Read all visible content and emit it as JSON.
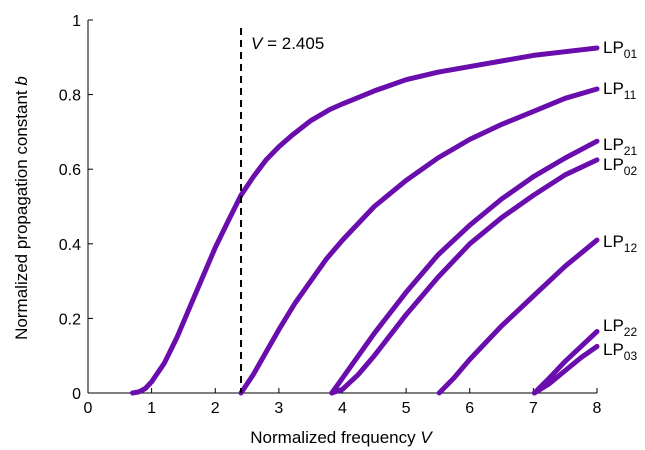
{
  "chart_data": {
    "type": "line",
    "xlabel": "Normalized frequency",
    "xlabel_var": "V",
    "ylabel": "Normalized propagation constant",
    "ylabel_var": "b",
    "xlim": [
      0,
      8
    ],
    "ylim": [
      0,
      1
    ],
    "xticks": [
      0,
      1,
      2,
      3,
      4,
      5,
      6,
      7,
      8
    ],
    "yticks": [
      0,
      0.2,
      0.4,
      0.6,
      0.8,
      1
    ],
    "ytick_labels": [
      "0",
      "0.2",
      "0.4",
      "0.6",
      "0.8",
      "1"
    ],
    "grid": false,
    "line_color": "#6a0dad",
    "annotation": {
      "type": "vertical-dashed-line",
      "x": 2.405,
      "var": "V",
      "text": " = 2.405"
    },
    "series": [
      {
        "name": "LP01",
        "label_main": "LP",
        "label_sub": "01",
        "x": [
          0.7,
          0.8,
          0.9,
          1.0,
          1.2,
          1.4,
          1.6,
          1.8,
          2.0,
          2.2,
          2.405,
          2.6,
          2.8,
          3.0,
          3.2,
          3.5,
          3.8,
          4.0,
          4.5,
          5.0,
          5.5,
          6.0,
          6.5,
          7.0,
          7.5,
          8.0
        ],
        "y": [
          0.0,
          0.003,
          0.012,
          0.03,
          0.08,
          0.15,
          0.23,
          0.31,
          0.39,
          0.46,
          0.53,
          0.58,
          0.625,
          0.66,
          0.69,
          0.73,
          0.76,
          0.775,
          0.81,
          0.84,
          0.86,
          0.875,
          0.89,
          0.905,
          0.915,
          0.925
        ]
      },
      {
        "name": "LP11",
        "label_main": "LP",
        "label_sub": "11",
        "x": [
          2.405,
          2.6,
          2.8,
          3.0,
          3.25,
          3.5,
          3.75,
          4.0,
          4.5,
          5.0,
          5.5,
          6.0,
          6.5,
          7.0,
          7.5,
          8.0
        ],
        "y": [
          0.0,
          0.05,
          0.11,
          0.17,
          0.24,
          0.3,
          0.36,
          0.41,
          0.5,
          0.57,
          0.63,
          0.68,
          0.72,
          0.755,
          0.79,
          0.815
        ]
      },
      {
        "name": "LP21",
        "label_main": "LP",
        "label_sub": "21",
        "x": [
          3.832,
          4.0,
          4.25,
          4.5,
          5.0,
          5.5,
          6.0,
          6.5,
          7.0,
          7.5,
          8.0
        ],
        "y": [
          0.0,
          0.04,
          0.1,
          0.16,
          0.27,
          0.37,
          0.45,
          0.52,
          0.58,
          0.63,
          0.675
        ]
      },
      {
        "name": "LP02",
        "label_main": "LP",
        "label_sub": "02",
        "x": [
          3.832,
          4.0,
          4.25,
          4.5,
          5.0,
          5.5,
          6.0,
          6.5,
          7.0,
          7.5,
          8.0
        ],
        "y": [
          0.0,
          0.01,
          0.05,
          0.1,
          0.21,
          0.31,
          0.4,
          0.47,
          0.53,
          0.585,
          0.625
        ]
      },
      {
        "name": "LP12",
        "label_main": "LP",
        "label_sub": "12",
        "x": [
          5.52,
          5.75,
          6.0,
          6.5,
          7.0,
          7.5,
          8.0
        ],
        "y": [
          0.0,
          0.04,
          0.09,
          0.18,
          0.26,
          0.34,
          0.41
        ]
      },
      {
        "name": "LP22",
        "label_main": "LP",
        "label_sub": "22",
        "x": [
          7.016,
          7.25,
          7.5,
          7.75,
          8.0
        ],
        "y": [
          0.0,
          0.04,
          0.085,
          0.125,
          0.165
        ]
      },
      {
        "name": "LP03",
        "label_main": "LP",
        "label_sub": "03",
        "x": [
          7.016,
          7.25,
          7.5,
          7.75,
          8.0
        ],
        "y": [
          0.0,
          0.025,
          0.06,
          0.095,
          0.125
        ]
      }
    ]
  }
}
